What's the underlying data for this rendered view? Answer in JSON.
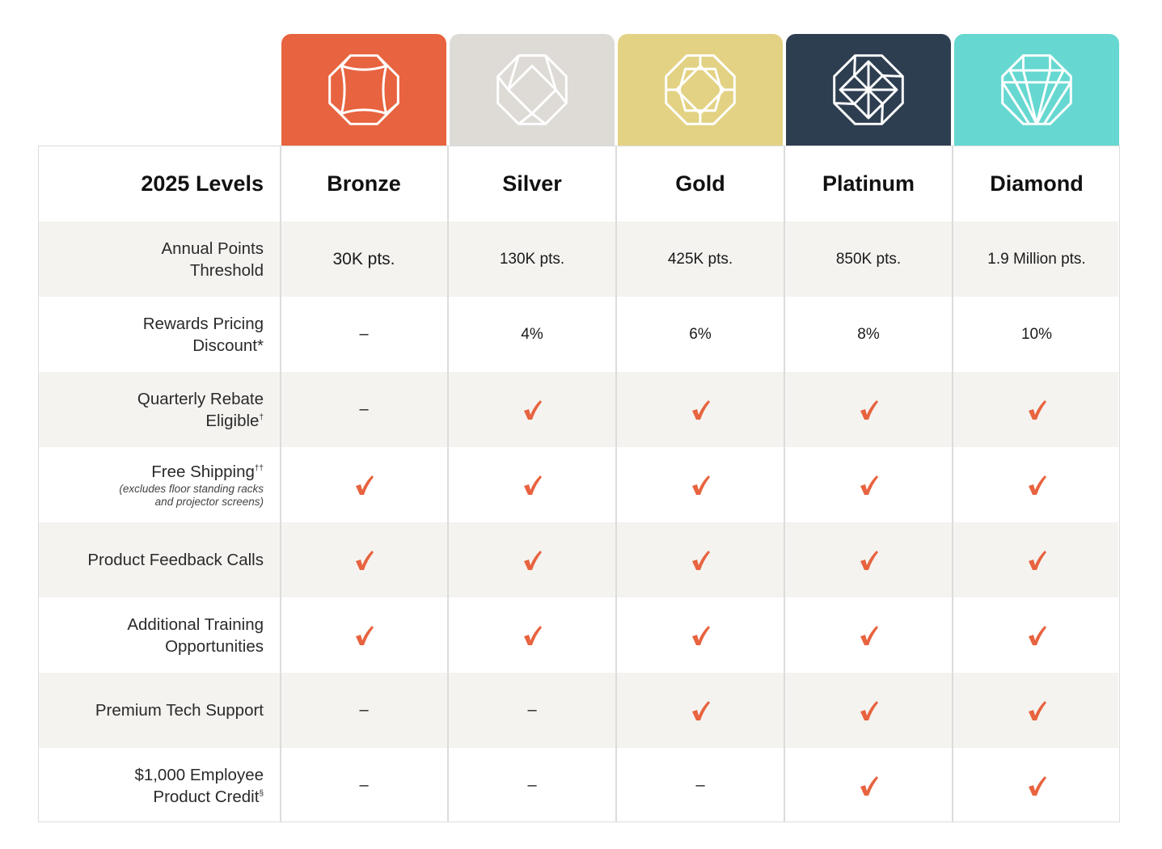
{
  "title": "2025 Levels",
  "colors": {
    "bronze": "#e8633f",
    "silver": "#dedad6",
    "gold": "#e3d284",
    "platinum": "#2e3e51",
    "diamond": "#66d8d1",
    "check": "#e8633f",
    "row_shade": "#f4f3f0"
  },
  "levels": [
    {
      "name": "Bronze",
      "icon": "bronze-gem-icon"
    },
    {
      "name": "Silver",
      "icon": "silver-gem-icon"
    },
    {
      "name": "Gold",
      "icon": "gold-gem-icon"
    },
    {
      "name": "Platinum",
      "icon": "platinum-gem-icon"
    },
    {
      "name": "Diamond",
      "icon": "diamond-gem-icon"
    }
  ],
  "rows": [
    {
      "label": [
        "Annual Points",
        "Threshold"
      ],
      "values": [
        "30K pts.",
        "130K pts.",
        "425K pts.",
        "850K pts.",
        "1.9 Million pts."
      ]
    },
    {
      "label": [
        "Rewards Pricing",
        "Discount*"
      ],
      "values": [
        "–",
        "4%",
        "6%",
        "8%",
        "10%"
      ]
    },
    {
      "label": [
        "Quarterly Rebate",
        "Eligible"
      ],
      "sup": "†",
      "values": [
        "–",
        "check",
        "check",
        "check",
        "check"
      ]
    },
    {
      "label": [
        "Free Shipping"
      ],
      "sup": "††",
      "sub": [
        "(excludes floor standing racks",
        "and projector screens)"
      ],
      "values": [
        "check",
        "check",
        "check",
        "check",
        "check"
      ]
    },
    {
      "label": [
        "Product Feedback Calls"
      ],
      "values": [
        "check",
        "check",
        "check",
        "check",
        "check"
      ]
    },
    {
      "label": [
        "Additional Training",
        "Opportunities"
      ],
      "values": [
        "check",
        "check",
        "check",
        "check",
        "check"
      ]
    },
    {
      "label": [
        "Premium Tech Support"
      ],
      "values": [
        "–",
        "–",
        "check",
        "check",
        "check"
      ]
    },
    {
      "label": [
        "$1,000 Employee",
        "Product Credit"
      ],
      "sup": "§",
      "values": [
        "–",
        "–",
        "–",
        "check",
        "check"
      ]
    }
  ]
}
